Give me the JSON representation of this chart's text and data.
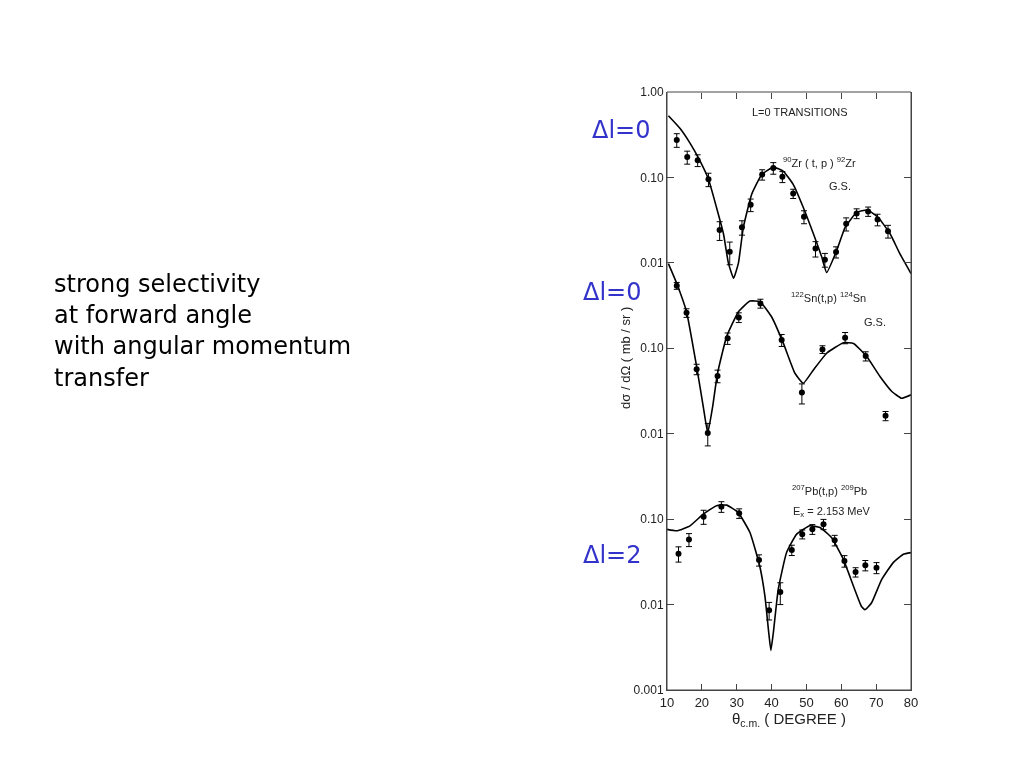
{
  "chart_data": [
    {
      "type": "scatter",
      "xlim": [
        10,
        80
      ],
      "ylim": [
        0.005,
        1
      ],
      "log": true,
      "line_style": "solid",
      "tick_labels": "y",
      "xticks": [
        {
          "value": 10,
          "label": null
        },
        {
          "value": 20,
          "label": null
        },
        {
          "value": 30,
          "label": null
        },
        {
          "value": 40,
          "label": null
        },
        {
          "value": 50,
          "label": null
        },
        {
          "value": 60,
          "label": null
        },
        {
          "value": 70,
          "label": null
        },
        {
          "value": 80,
          "label": null
        }
      ],
      "yticks": [
        {
          "value": 1,
          "label": "1.00"
        },
        {
          "value": 0.1,
          "label": "0.10"
        },
        {
          "value": 0.01,
          "label": "0.01"
        }
      ],
      "annotations": [
        "L=0 TRANSITIONS",
        "$^{90}$Zr ( t, p ) $^{92}$Zr",
        "G.S.",
        "Δl=0",
        "strong selectivity\nat forward angle\nwith angular momentum\ntransfer"
      ],
      "series": [
        {
          "type": "line",
          "color": "#000000",
          "x": [
            10.4,
            13.7,
            16.6,
            19.5,
            21.9,
            24.2,
            26.2,
            27.6,
            29.1,
            30.5,
            31.9,
            34.3,
            37.2,
            40.5,
            43.4,
            46.2,
            49.1,
            52.0,
            54.4,
            55.8,
            58.7,
            61.1,
            64.4,
            67.5,
            70.6,
            74.0,
            76.8,
            80
          ],
          "values": [
            0.527,
            0.376,
            0.252,
            0.155,
            0.095,
            0.0445,
            0.0219,
            0.01,
            0.0066,
            0.01,
            0.026,
            0.0636,
            0.108,
            0.132,
            0.118,
            0.083,
            0.0445,
            0.0219,
            0.0117,
            0.0077,
            0.014,
            0.026,
            0.039,
            0.0415,
            0.034,
            0.0219,
            0.0128,
            0.0075
          ]
        },
        {
          "marker": "circle",
          "color": "#000000",
          "x": [
            12.8,
            15.8,
            18.8,
            21.9,
            25.1,
            28.0,
            31.5,
            34.0,
            37.3,
            40.5,
            43.1,
            46.2,
            49.3,
            52.6,
            55.3,
            58.5,
            61.4,
            64.4,
            67.7,
            70.4,
            73.4
          ],
          "values": [
            0.275,
            0.173,
            0.159,
            0.095,
            0.0243,
            0.0135,
            0.0261,
            0.0478,
            0.108,
            0.129,
            0.102,
            0.0647,
            0.0347,
            0.0147,
            0.0109,
            0.0134,
            0.0286,
            0.0379,
            0.04,
            0.0321,
            0.0235
          ],
          "errors": [
            0.05,
            0.03,
            0.025,
            0.017,
            0.006,
            0.004,
            0.005,
            0.008,
            0.015,
            0.02,
            0.015,
            0.008,
            0.006,
            0.003,
            0.002,
            0.002,
            0.005,
            0.005,
            0.005,
            0.005,
            0.004
          ]
        }
      ]
    },
    {
      "type": "scatter",
      "xlim": [
        10,
        80
      ],
      "ylim": [
        0.006,
        1
      ],
      "log": true,
      "line_style": "solid",
      "tick_labels": "y",
      "ylabel": "dσ / dΩ ( mb / sr )",
      "yticks": [
        {
          "value": 0.1,
          "label": "0.10"
        },
        {
          "value": 0.01,
          "label": "0.01"
        }
      ],
      "annotations": [
        "$^{122}$Sn(t,p) $^{124}$Sn",
        "G.S.",
        "Δl=0"
      ],
      "series": [
        {
          "type": "line",
          "color": "#000000",
          "x": [
            10.4,
            12.8,
            15.6,
            18.5,
            20.4,
            21.7,
            23.1,
            24.5,
            27.1,
            30.5,
            33.8,
            36.7,
            40.0,
            43.4,
            46.7,
            49.1,
            52.0,
            55.8,
            60.6,
            63.5,
            67.3,
            71.1,
            74.5,
            77.3,
            80
          ],
          "values": [
            0.98,
            0.574,
            0.268,
            0.061,
            0.0208,
            0.0102,
            0.0208,
            0.051,
            0.137,
            0.268,
            0.357,
            0.351,
            0.234,
            0.114,
            0.051,
            0.039,
            0.0558,
            0.0875,
            0.116,
            0.114,
            0.08,
            0.0467,
            0.0312,
            0.026,
            0.0285
          ]
        },
        {
          "marker": "circle",
          "color": "#000000",
          "x": [
            12.8,
            15.6,
            18.5,
            21.7,
            24.5,
            27.4,
            30.6,
            36.8,
            42.9,
            48.7,
            54.6,
            61.1,
            67.0,
            72.7
          ],
          "values": [
            0.54,
            0.26,
            0.057,
            0.0102,
            0.0475,
            0.131,
            0.23,
            0.335,
            0.125,
            0.0303,
            0.097,
            0.133,
            0.081,
            0.0162
          ],
          "errors": [
            0.05,
            0.03,
            0.008,
            0.003,
            0.008,
            0.02,
            0.03,
            0.04,
            0.02,
            0.008,
            0.01,
            0.02,
            0.01,
            0.002
          ]
        }
      ]
    },
    {
      "type": "scatter",
      "xlim": [
        10,
        80
      ],
      "ylim": [
        0.001,
        1
      ],
      "log": true,
      "line_style": "solid",
      "xlabel": "θ$_{c.m.}$ ( DEGREE )",
      "xticks": [
        10,
        20,
        30,
        40,
        50,
        60,
        70,
        80
      ],
      "yticks": [
        {
          "value": 0.1,
          "label": "0.10"
        },
        {
          "value": 0.01,
          "label": "0.01"
        },
        {
          "value": 0.001,
          "label": "0.001"
        }
      ],
      "annotations": [
        "$^{207}$Pb(t,p) $^{209}$Pb",
        "E$_{x}$ = 2.153 MeV",
        "Δl=2"
      ],
      "series": [
        {
          "type": "line",
          "color": "#000000",
          "x": [
            10,
            12.8,
            16.6,
            20.4,
            24.2,
            27.1,
            30.4,
            33.8,
            36.6,
            38.1,
            39.2,
            39.8,
            40.5,
            41.9,
            44.3,
            47.2,
            51.0,
            53.9,
            57.2,
            60.6,
            63.5,
            65.8,
            66.8,
            68.7,
            71.6,
            74.9,
            77.8,
            80
          ],
          "values": [
            0.076,
            0.073,
            0.0835,
            0.1145,
            0.1436,
            0.146,
            0.12,
            0.0697,
            0.0283,
            0.0125,
            0.00465,
            0.0029,
            0.00465,
            0.015,
            0.0406,
            0.0667,
            0.0835,
            0.0798,
            0.0608,
            0.0338,
            0.0164,
            0.0095,
            0.0087,
            0.0105,
            0.0197,
            0.031,
            0.0388,
            0.0406
          ]
        },
        {
          "marker": "circle",
          "color": "#000000",
          "x": [
            13.3,
            16.3,
            20.5,
            25.6,
            30.7,
            36.4,
            39.3,
            42.5,
            45.8,
            48.8,
            51.7,
            54.9,
            58.1,
            60.9,
            64.1,
            66.9,
            70.1
          ],
          "values": [
            0.0394,
            0.0577,
            0.107,
            0.14,
            0.117,
            0.0332,
            0.0086,
            0.014,
            0.0435,
            0.0667,
            0.0763,
            0.0873,
            0.0566,
            0.0324,
            0.024,
            0.0288,
            0.027
          ],
          "errors": [
            0.008,
            0.01,
            0.02,
            0.02,
            0.015,
            0.005,
            0.002,
            0.004,
            0.006,
            0.008,
            0.01,
            0.012,
            0.008,
            0.005,
            0.003,
            0.004,
            0.004
          ]
        }
      ]
    }
  ]
}
